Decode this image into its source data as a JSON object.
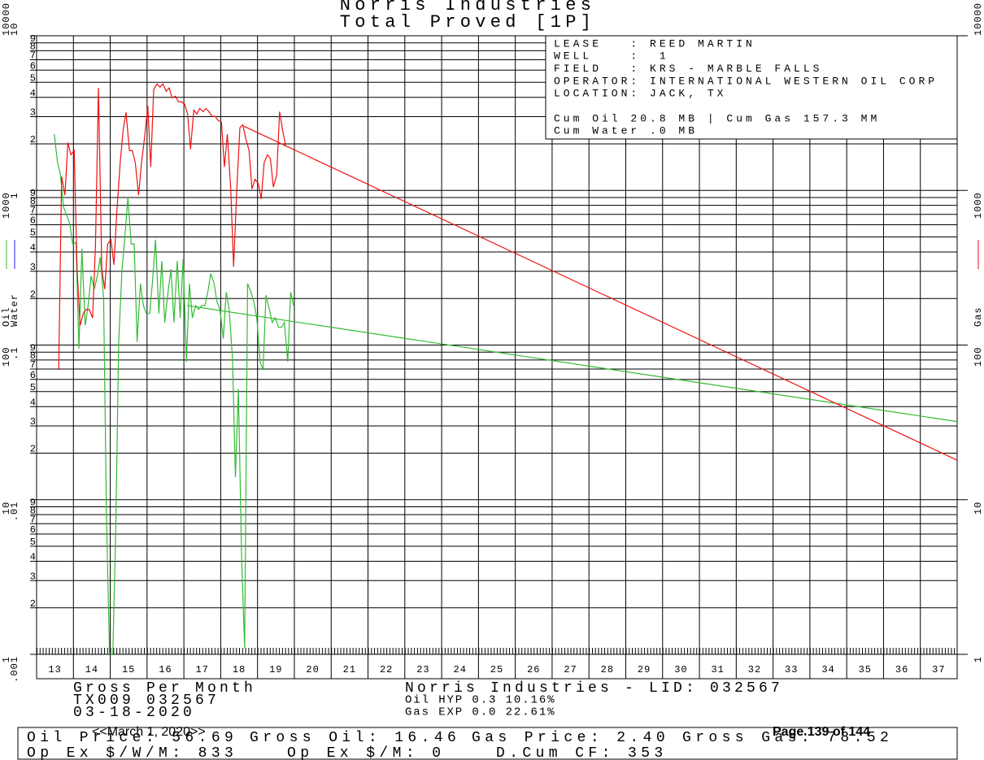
{
  "chart_data": {
    "type": "line",
    "title": "Norris Industries",
    "subtitle": "Total Proved [1P]",
    "xlim": [
      13,
      38
    ],
    "xticks": [
      13,
      14,
      15,
      16,
      17,
      18,
      19,
      20,
      21,
      22,
      23,
      24,
      25,
      26,
      27,
      28,
      29,
      30,
      31,
      32,
      33,
      34,
      35,
      36,
      37
    ],
    "ylim": [
      1,
      10000
    ],
    "ylog": true,
    "grid": true,
    "yticks": [
      1,
      10,
      100,
      1000,
      10000
    ],
    "y_minor_ticks": [
      {
        "value": 2,
        "label": "2"
      },
      {
        "value": 3,
        "label": "3"
      },
      {
        "value": 4,
        "label": "4"
      },
      {
        "value": 5,
        "label": "5"
      },
      {
        "value": 6,
        "label": "6"
      },
      {
        "value": 7,
        "label": "7"
      },
      {
        "value": 8,
        "label": "8"
      },
      {
        "value": 9,
        "label": "9"
      },
      {
        "value": 20,
        "label": "2"
      },
      {
        "value": 30,
        "label": "3"
      },
      {
        "value": 40,
        "label": "4"
      },
      {
        "value": 50,
        "label": "5"
      },
      {
        "value": 60,
        "label": "6"
      },
      {
        "value": 70,
        "label": "7"
      },
      {
        "value": 80,
        "label": "8"
      },
      {
        "value": 90,
        "label": "9"
      },
      {
        "value": 200,
        "label": "2"
      },
      {
        "value": 300,
        "label": "3"
      },
      {
        "value": 400,
        "label": "4"
      },
      {
        "value": 500,
        "label": "5"
      },
      {
        "value": 600,
        "label": "6"
      },
      {
        "value": 700,
        "label": "7"
      },
      {
        "value": 800,
        "label": "8"
      },
      {
        "value": 900,
        "label": "9"
      },
      {
        "value": 2000,
        "label": "2"
      },
      {
        "value": 3000,
        "label": "3"
      },
      {
        "value": 4000,
        "label": "4"
      },
      {
        "value": 5000,
        "label": "5"
      },
      {
        "value": 6000,
        "label": "6"
      },
      {
        "value": 7000,
        "label": "7"
      },
      {
        "value": 8000,
        "label": "8"
      },
      {
        "value": 9000,
        "label": "9"
      }
    ],
    "y2lim": [
      1,
      10000
    ],
    "y2ticks": [
      1,
      10,
      100,
      1000,
      10000
    ],
    "y3lim": [
      0.001,
      10
    ],
    "y3ticks": [
      {
        "value": 0.001,
        "label": ".001"
      },
      {
        "value": 0.01,
        "label": ".01"
      },
      {
        "value": 0.1,
        "label": ".1"
      },
      1,
      10
    ],
    "series": [
      {
        "name": "Oil",
        "color": "#33bb33",
        "x": [
          13.48,
          13.57,
          13.65,
          13.73,
          13.82,
          13.9,
          13.98,
          14.07,
          14.15,
          14.23,
          14.32,
          14.4,
          14.48,
          14.57,
          14.65,
          14.73,
          14.82,
          14.9,
          14.98,
          15.07,
          15.15,
          15.23,
          15.32,
          15.4,
          15.48,
          15.57,
          15.65,
          15.73,
          15.82,
          15.9,
          15.98,
          16.07,
          16.15,
          16.23,
          16.32,
          16.4,
          16.48,
          16.57,
          16.65,
          16.73,
          16.82,
          16.9,
          16.98,
          17.07,
          17.15,
          17.23,
          17.32,
          17.4,
          17.48,
          17.57,
          17.65,
          17.73,
          17.82,
          17.9,
          17.98,
          18.07,
          18.15,
          18.23,
          18.32,
          18.4,
          18.48,
          18.57,
          18.65,
          18.73,
          18.82,
          18.9,
          18.98,
          19.07,
          19.15,
          19.23,
          19.32,
          19.4,
          19.48,
          19.57,
          19.65,
          19.73,
          19.82,
          19.9,
          19.98
        ],
        "values": [
          2310,
          1510,
          1260,
          780,
          690,
          610,
          450,
          460,
          95,
          420,
          134,
          180,
          280,
          230,
          280,
          370,
          200,
          7.4,
          1,
          1,
          6.5,
          105,
          310,
          510,
          900,
          450,
          450,
          105,
          250,
          180,
          160,
          160,
          260,
          480,
          160,
          350,
          140,
          220,
          310,
          140,
          350,
          150,
          360,
          78,
          250,
          150,
          180,
          170,
          180,
          180,
          220,
          290,
          250,
          190,
          170,
          110,
          220,
          170,
          82,
          14,
          52,
          4,
          1.1,
          250,
          220,
          190,
          150,
          78,
          69,
          210,
          170,
          140,
          150,
          130,
          130,
          140,
          78,
          220,
          180
        ],
        "forecast": {
          "x": [
            17.09,
            38
          ],
          "values": [
            180,
            32
          ]
        }
      },
      {
        "name": "Water",
        "color": "#2222ff",
        "axis": "y3",
        "x": [],
        "values": []
      },
      {
        "name": "Gas",
        "color": "#ee1111",
        "axis": "y2",
        "x": [
          13.6,
          13.68,
          13.77,
          13.85,
          13.93,
          14.02,
          14.1,
          14.18,
          14.27,
          14.35,
          14.43,
          14.52,
          14.6,
          14.68,
          14.77,
          14.85,
          14.93,
          15.02,
          15.1,
          15.18,
          15.27,
          15.35,
          15.43,
          15.52,
          15.6,
          15.68,
          15.77,
          15.85,
          15.93,
          16.02,
          16.1,
          16.18,
          16.27,
          16.35,
          16.43,
          16.52,
          16.6,
          16.68,
          16.77,
          16.85,
          16.93,
          17.02,
          17.1,
          17.18,
          17.27,
          17.35,
          17.43,
          17.52,
          17.6,
          17.68,
          17.77,
          17.85,
          17.93,
          18.02,
          18.1,
          18.18,
          18.27,
          18.35,
          18.43,
          18.52,
          18.6,
          18.68,
          18.77,
          18.85,
          18.93,
          19.02,
          19.1,
          19.18,
          19.27,
          19.35,
          19.43,
          19.52,
          19.6,
          19.68,
          19.77
        ],
        "values": [
          69,
          1230,
          930,
          2040,
          1700,
          1810,
          310,
          134,
          160,
          170,
          170,
          150,
          450,
          4600,
          310,
          230,
          450,
          480,
          330,
          730,
          1510,
          2450,
          3200,
          1810,
          1810,
          1510,
          930,
          1510,
          2170,
          3520,
          1420,
          4490,
          4880,
          4650,
          4880,
          4370,
          4600,
          3970,
          4070,
          3740,
          3740,
          3610,
          3120,
          1850,
          3310,
          3120,
          3390,
          3230,
          3390,
          3230,
          3010,
          3010,
          2830,
          2760,
          1420,
          2310,
          1050,
          320,
          930,
          2540,
          2660,
          2170,
          1810,
          1020,
          1180,
          1110,
          880,
          1510,
          1700,
          1600,
          1050,
          1260,
          3230,
          2450,
          1920
        ],
        "forecast": {
          "x": [
            18.63,
            38
          ],
          "values": [
            2600,
            18
          ]
        }
      }
    ]
  },
  "info_box": {
    "lines": [
      "LEASE   : REED MARTIN",
      "WELL    :  1",
      "FIELD   : KRS - MARBLE FALLS",
      "OPERATOR: INTERNATIONAL WESTERN OIL CORP",
      "LOCATION: JACK, TX"
    ],
    "cum_lines": [
      "Cum Oil 20.8 MB | Cum Gas 157.3 MM",
      "Cum Water .0 MB"
    ]
  },
  "footer": {
    "left": [
      "Gross Per Month",
      "TX009 032567",
      "03-18-2020"
    ],
    "center_title": "Norris Industries - LID: 032567",
    "center_lines": [
      "Oil HYP 0.3 10.16%",
      "Gas EXP 0.0 22.61%"
    ],
    "box_row1": [
      "Oil Price: 56.69",
      "Gross Oil: 16.46",
      "Gas Price: 2.40",
      "Gross Gas: 78.52"
    ],
    "box_row2": [
      "Op Ex $/W/M: 833",
      "Op Ex $/M: 0",
      "D.Cum CF: 353"
    ]
  },
  "overlay": {
    "date": "<<March 1, 2020>>",
    "page": "Page 139 of 144"
  }
}
